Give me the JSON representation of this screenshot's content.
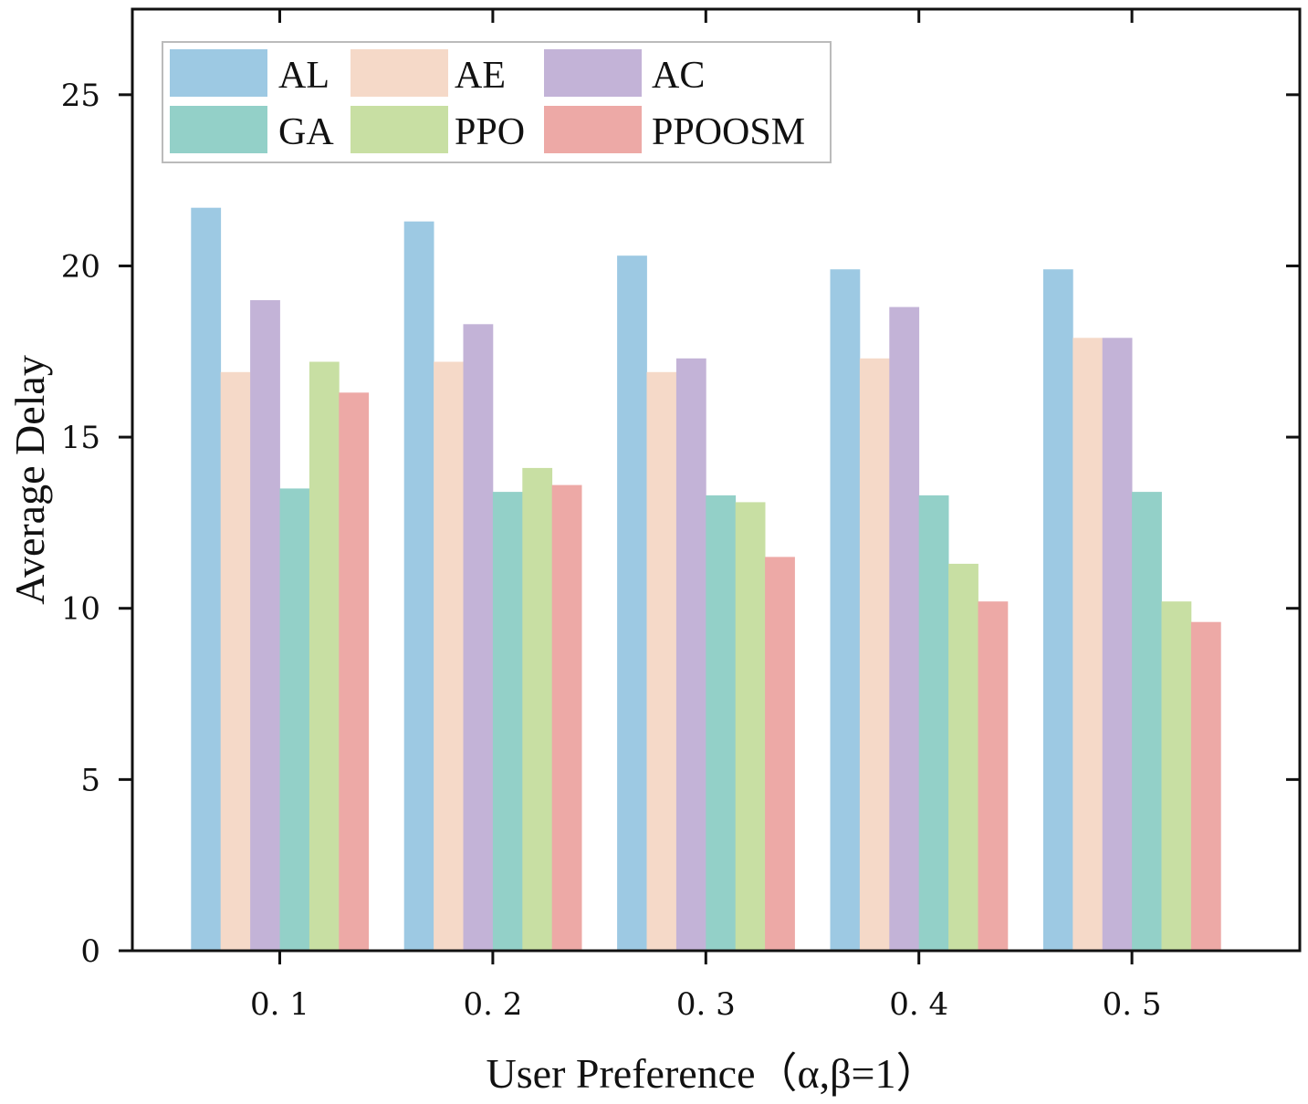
{
  "chart_data": {
    "type": "bar",
    "xlabel": "User Preference（α,β=1）",
    "ylabel": "Average Delay",
    "ylim": [
      0,
      27.5
    ],
    "yticks": [
      0,
      5,
      10,
      15,
      20,
      25
    ],
    "ytick_labels": [
      "0",
      "5",
      "10",
      "15",
      "20",
      "25"
    ],
    "categories": [
      "0. 1",
      "0. 2",
      "0. 3",
      "0. 4",
      "0. 5"
    ],
    "legend_position": "top-left",
    "series": [
      {
        "name": "AL",
        "color": "#9dc9e3",
        "values": [
          21.7,
          21.3,
          20.3,
          19.9,
          19.9
        ]
      },
      {
        "name": "AE",
        "color": "#f5d9c8",
        "values": [
          16.9,
          17.2,
          16.9,
          17.3,
          17.9
        ]
      },
      {
        "name": "AC",
        "color": "#c3b3d7",
        "values": [
          19.0,
          18.3,
          17.3,
          18.8,
          17.9
        ]
      },
      {
        "name": "GA",
        "color": "#93d0c8",
        "values": [
          13.5,
          13.4,
          13.3,
          13.3,
          13.4
        ]
      },
      {
        "name": "PPO",
        "color": "#c8dfa3",
        "values": [
          17.2,
          14.1,
          13.1,
          11.3,
          10.2
        ]
      },
      {
        "name": "PPOOSM",
        "color": "#eda9a6",
        "values": [
          16.3,
          13.6,
          11.5,
          10.2,
          9.6
        ]
      }
    ]
  }
}
